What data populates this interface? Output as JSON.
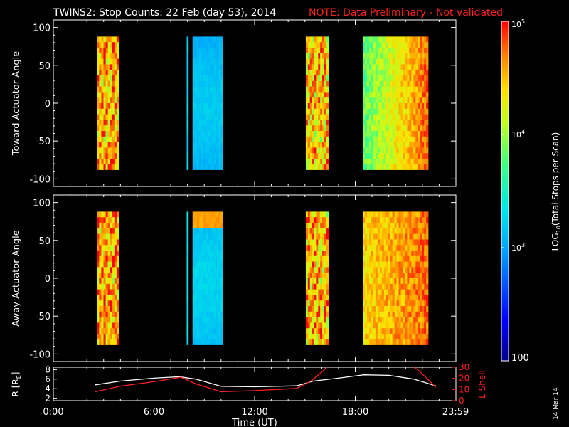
{
  "chart_data": [
    {
      "type": "heatmap",
      "panel": "top",
      "title": "TWINS2: Stop Counts: 22 Feb (day  53), 2014",
      "note": "NOTE: Data Preliminary - Not validated",
      "ylabel": "Toward Actuator Angle",
      "ylim": [
        -110,
        110
      ],
      "yticks": [
        "100",
        "50",
        "0",
        "-50",
        "-100"
      ],
      "angle_range": [
        -88,
        88
      ],
      "xlim_hours": [
        0,
        24
      ],
      "segments": [
        {
          "start_h": 2.6,
          "end_h": 3.9,
          "level": 4.55,
          "pattern": "banded"
        },
        {
          "start_h": 7.95,
          "end_h": 8.05,
          "level": 3.2,
          "pattern": "stripe"
        },
        {
          "start_h": 8.3,
          "end_h": 10.1,
          "level": 3.05,
          "pattern": "smooth"
        },
        {
          "start_h": 15.05,
          "end_h": 16.4,
          "level": 4.45,
          "pattern": "banded"
        },
        {
          "start_h": 18.45,
          "end_h": 22.35,
          "level": 3.8,
          "pattern": "gradient",
          "level_end": 4.8
        }
      ]
    },
    {
      "type": "heatmap",
      "panel": "bottom",
      "ylabel": "Away Actuator Angle",
      "ylim": [
        -110,
        110
      ],
      "yticks": [
        "100",
        "50",
        "0",
        "-50",
        "-100"
      ],
      "angle_range": [
        -88,
        88
      ],
      "xlim_hours": [
        0,
        24
      ],
      "segments": [
        {
          "start_h": 2.6,
          "end_h": 3.9,
          "level": 4.6,
          "pattern": "banded"
        },
        {
          "start_h": 7.95,
          "end_h": 8.05,
          "level": 3.3,
          "pattern": "stripe"
        },
        {
          "start_h": 8.3,
          "end_h": 10.1,
          "level": 3.1,
          "pattern": "smooth_hot_top"
        },
        {
          "start_h": 15.05,
          "end_h": 16.4,
          "level": 4.5,
          "pattern": "banded"
        },
        {
          "start_h": 18.45,
          "end_h": 22.35,
          "level": 4.4,
          "pattern": "gradient",
          "level_end": 4.75
        }
      ]
    },
    {
      "type": "line",
      "panel": "orbit",
      "ylabel_left": "R [R",
      "ylabel_left_sub": "E",
      "ylabel_right": "L Shell",
      "ylim_left": [
        1.5,
        8.5
      ],
      "yticks_left": [
        "8",
        "6",
        "4",
        "2"
      ],
      "ylim_right": [
        0,
        30
      ],
      "yticks_right": [
        "30",
        "20",
        "10",
        "0"
      ],
      "xlabel": "Time (UT)",
      "xticks": [
        "0:00",
        "6:00",
        "12:00",
        "18:00",
        "23:59"
      ],
      "xtick_hours": [
        0,
        6,
        12,
        18,
        23.98
      ],
      "series": [
        {
          "axis": "left",
          "color": "#ffffff",
          "x": [
            2.5,
            4.0,
            6.0,
            7.5,
            8.5,
            10.0,
            12.0,
            14.5,
            15.5,
            17.0,
            18.5,
            20.0,
            21.5,
            22.8
          ],
          "y": [
            4.8,
            5.6,
            6.2,
            6.5,
            6.0,
            4.5,
            4.4,
            4.6,
            5.6,
            6.2,
            6.9,
            6.8,
            6.0,
            4.6
          ]
        },
        {
          "axis": "right",
          "color": "#ff2020",
          "x": [
            2.5,
            4.0,
            6.0,
            7.6,
            8.5,
            10.0,
            12.0,
            14.5,
            15.4,
            16.1,
            16.3
          ],
          "y": [
            8,
            13,
            17,
            21,
            15,
            8,
            9,
            11,
            18,
            27,
            31
          ]
        },
        {
          "axis": "right",
          "color": "#ff2020",
          "x": [
            21.5,
            21.8,
            22.8
          ],
          "y": [
            31,
            27,
            12
          ]
        }
      ]
    }
  ],
  "colorbar": {
    "label": "LOG",
    "label_sub": "10",
    "label_rest": "(Total Stops per Scan)",
    "ticks": [
      {
        "value": 5,
        "base": "10",
        "exp": "5"
      },
      {
        "value": 4,
        "base": "10",
        "exp": "4"
      },
      {
        "value": 3,
        "base": "10",
        "exp": "3"
      },
      {
        "value": 2,
        "text": "100"
      }
    ],
    "range": [
      2,
      5
    ]
  },
  "date_stamp": "14 Mar 14",
  "colors": {
    "note": "#ff2020",
    "background": "#000000",
    "axes": "#ffffff",
    "lshell": "#ff2020"
  }
}
